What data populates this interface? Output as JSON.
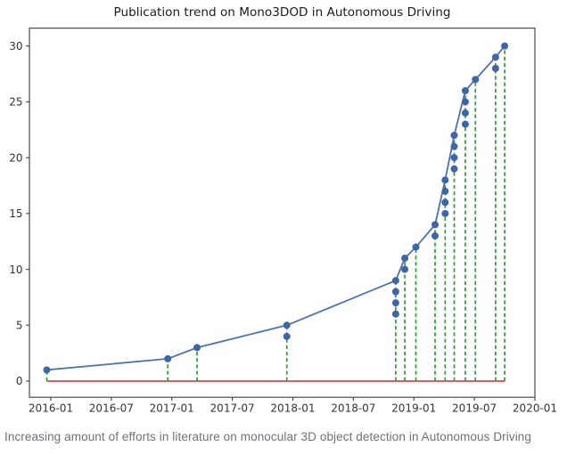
{
  "chart_data": {
    "type": "line",
    "title": "Publication trend on Mono3DOD in Autonomous Driving",
    "xlabel": "",
    "ylabel": "",
    "grid": false,
    "legend": false,
    "series_style": "cumulative publication-count line with a marker per paper, green dashed stems from zero to each point, and a red zero baseline",
    "x_tick_labels": [
      "2016-01",
      "2016-07",
      "2017-01",
      "2017-07",
      "2018-01",
      "2018-07",
      "2019-01",
      "2019-07",
      "2020-01"
    ],
    "x_tick_month_offsets": [
      0,
      6,
      12,
      18,
      24,
      30,
      36,
      42,
      48
    ],
    "y_ticks": [
      0,
      5,
      10,
      15,
      20,
      25,
      30
    ],
    "ylim": [
      -1.45,
      31.6
    ],
    "xlim_month_offsets": [
      -2.12,
      48
    ],
    "groups": [
      {
        "date": "2015-12",
        "month_offset": -0.4,
        "cumulative_counts": [
          1
        ]
      },
      {
        "date": "2016-12",
        "month_offset": 11.6,
        "cumulative_counts": [
          2
        ]
      },
      {
        "date": "2017-03",
        "month_offset": 14.5,
        "cumulative_counts": [
          3
        ]
      },
      {
        "date": "2017-12",
        "month_offset": 23.4,
        "cumulative_counts": [
          4,
          5
        ]
      },
      {
        "date": "2018-11",
        "month_offset": 34.2,
        "cumulative_counts": [
          6,
          7,
          8,
          9
        ]
      },
      {
        "date": "2018-12",
        "month_offset": 35.1,
        "cumulative_counts": [
          10,
          11
        ]
      },
      {
        "date": "2019-01",
        "month_offset": 36.2,
        "cumulative_counts": [
          12
        ]
      },
      {
        "date": "2019-03",
        "month_offset": 38.1,
        "cumulative_counts": [
          13,
          14
        ]
      },
      {
        "date": "2019-04",
        "month_offset": 39.1,
        "cumulative_counts": [
          15,
          16,
          17,
          18
        ]
      },
      {
        "date": "2019-05",
        "month_offset": 40.0,
        "cumulative_counts": [
          19,
          20,
          21,
          22
        ]
      },
      {
        "date": "2019-06",
        "month_offset": 41.1,
        "cumulative_counts": [
          23,
          24,
          25,
          26
        ]
      },
      {
        "date": "2019-07",
        "month_offset": 42.1,
        "cumulative_counts": [
          27
        ]
      },
      {
        "date": "2019-09",
        "month_offset": 44.1,
        "cumulative_counts": [
          28,
          29
        ]
      },
      {
        "date": "2019-10",
        "month_offset": 45.0,
        "cumulative_counts": [
          30
        ]
      }
    ],
    "final_cumulative_count": 30,
    "colors": {
      "line": "#4c72b0",
      "marker": "#3f65a8",
      "stem": "#2e9e35",
      "baseline": "#d24a4e",
      "spine": "#4a4a4a",
      "tick_label": "#333333",
      "title": "#1c1c1c",
      "caption": "#6d7278"
    }
  },
  "caption": {
    "text": "Increasing amount of efforts in literature on monocular 3D object detection in Autonomous Driving"
  }
}
